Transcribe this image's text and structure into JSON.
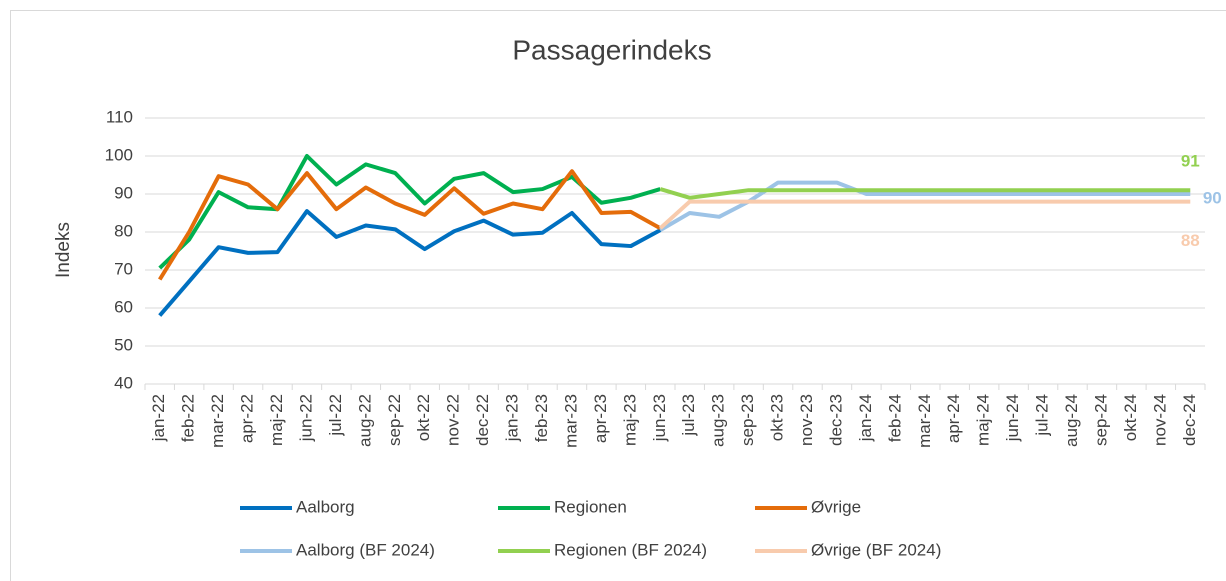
{
  "chart_data": {
    "type": "line",
    "title": "Passagerindeks",
    "y_label": "Indeks",
    "categories": [
      "jan-22",
      "feb-22",
      "mar-22",
      "apr-22",
      "maj-22",
      "jun-22",
      "jul-22",
      "aug-22",
      "sep-22",
      "okt-22",
      "nov-22",
      "dec-22",
      "jan-23",
      "feb-23",
      "mar-23",
      "apr-23",
      "maj-23",
      "jun-23",
      "jul-23",
      "aug-23",
      "sep-23",
      "okt-23",
      "nov-23",
      "dec-23",
      "jan-24",
      "feb-24",
      "mar-24",
      "apr-24",
      "maj-24",
      "jun-24",
      "jul-24",
      "aug-24",
      "sep-24",
      "okt-24",
      "nov-24",
      "dec-24"
    ],
    "ylim": [
      40,
      110
    ],
    "yticks": [
      40,
      50,
      60,
      70,
      80,
      90,
      100,
      110
    ],
    "grid": true,
    "series": [
      {
        "name": "Aalborg",
        "color": "#0070c0",
        "values": [
          58,
          67,
          76,
          74.5,
          74.7,
          85.5,
          78.7,
          81.7,
          80.7,
          75.5,
          80.2,
          83,
          79.3,
          79.8,
          85,
          76.8,
          76.3,
          80.5,
          null,
          null,
          null,
          null,
          null,
          null,
          null,
          null,
          null,
          null,
          null,
          null,
          null,
          null,
          null,
          null,
          null,
          null
        ]
      },
      {
        "name": "Regionen",
        "color": "#00b050",
        "values": [
          70.5,
          78,
          90.5,
          86.5,
          86,
          100,
          92.5,
          97.8,
          95.5,
          87.5,
          94,
          95.5,
          90.5,
          91.3,
          94.5,
          87.7,
          89,
          91.3,
          null,
          null,
          null,
          null,
          null,
          null,
          null,
          null,
          null,
          null,
          null,
          null,
          null,
          null,
          null,
          null,
          null,
          null
        ]
      },
      {
        "name": "Øvrige",
        "color": "#e46c0a",
        "values": [
          67.5,
          80,
          94.7,
          92.5,
          86,
          95.5,
          86,
          91.7,
          87.5,
          84.5,
          91.5,
          84.8,
          87.5,
          86,
          96,
          85,
          85.3,
          81,
          null,
          null,
          null,
          null,
          null,
          null,
          null,
          null,
          null,
          null,
          null,
          null,
          null,
          null,
          null,
          null,
          null,
          null
        ]
      },
      {
        "name": "Aalborg (BF 2024)",
        "color": "#9dc3e6",
        "data_label_last": true,
        "values": [
          null,
          null,
          null,
          null,
          null,
          null,
          null,
          null,
          null,
          null,
          null,
          null,
          null,
          null,
          null,
          null,
          null,
          80.5,
          85,
          84,
          88,
          93,
          93,
          93,
          90,
          90,
          90,
          90,
          90,
          90,
          90,
          90,
          90,
          90,
          90,
          90
        ]
      },
      {
        "name": "Regionen  (BF 2024)",
        "color": "#92d050",
        "data_label_last": true,
        "values": [
          null,
          null,
          null,
          null,
          null,
          null,
          null,
          null,
          null,
          null,
          null,
          null,
          null,
          null,
          null,
          null,
          null,
          91.3,
          89,
          90,
          91,
          91,
          91,
          91,
          91,
          91,
          91,
          91,
          91,
          91,
          91,
          91,
          91,
          91,
          91,
          91
        ]
      },
      {
        "name": "Øvrige (BF 2024)",
        "color": "#f8cbad",
        "data_label_last": true,
        "values": [
          null,
          null,
          null,
          null,
          null,
          null,
          null,
          null,
          null,
          null,
          null,
          null,
          null,
          null,
          null,
          null,
          null,
          81,
          88,
          88,
          88,
          88,
          88,
          88,
          88,
          88,
          88,
          88,
          88,
          88,
          88,
          88,
          88,
          88,
          88,
          88
        ]
      }
    ]
  }
}
